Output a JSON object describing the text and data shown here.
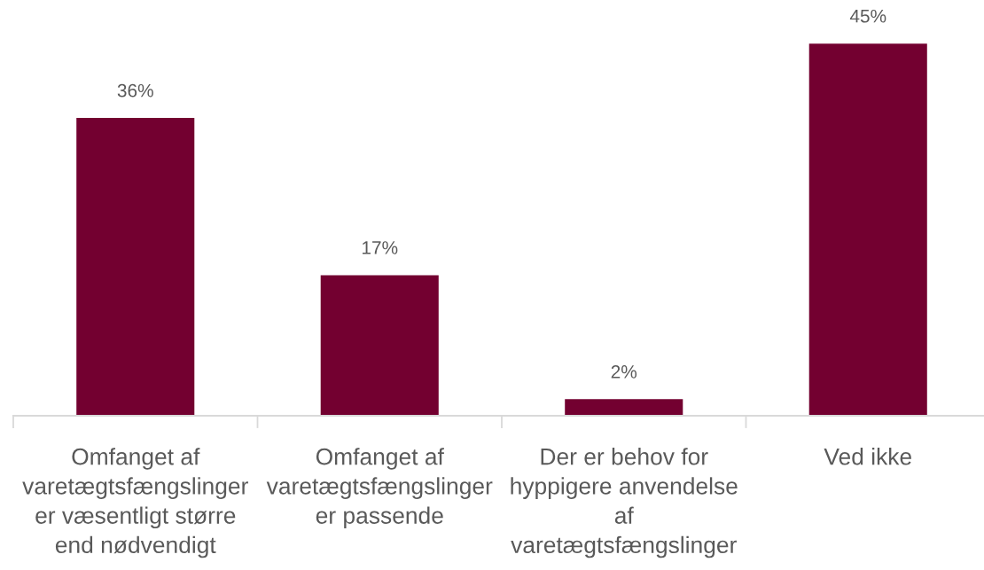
{
  "chart_data": {
    "type": "bar",
    "categories": [
      "Omfanget af\nvaretægtsfængslinger\ner væsentligt større\nend nødvendigt",
      "Omfanget af\nvaretægtsfængslinger\ner passende",
      "Der er behov for\nhyppigere anvendelse\naf\nvaretægtsfængslinger",
      "Ved ikke"
    ],
    "values": [
      36,
      17,
      2,
      45
    ],
    "value_labels": [
      "36%",
      "17%",
      "2%",
      "45%"
    ],
    "color": "#730030"
  }
}
